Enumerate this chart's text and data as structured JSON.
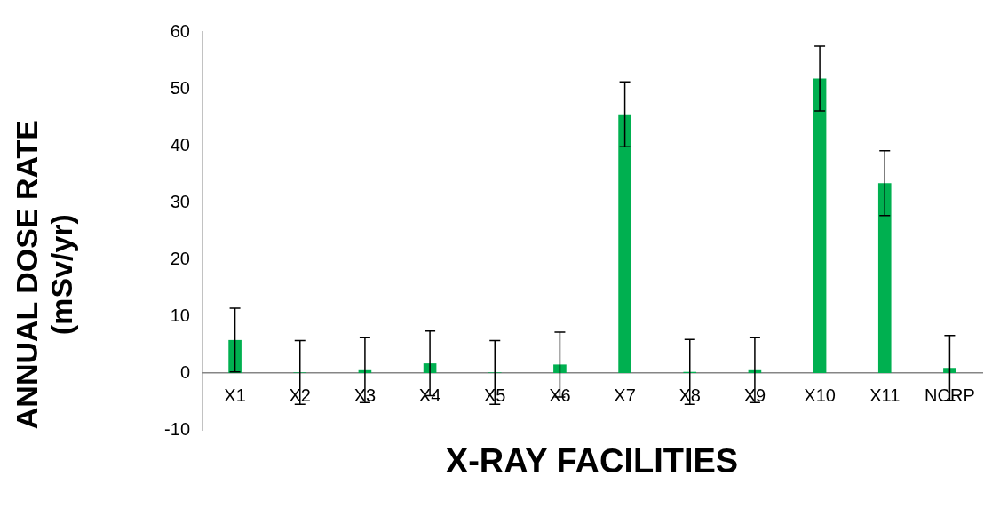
{
  "chart_data": {
    "type": "bar",
    "xlabel": "X-RAY FACILITIES",
    "ylabel": "ANNUAL DOSE RATE (mSv/yr)",
    "categories": [
      "X1",
      "X2",
      "X3",
      "X4",
      "X5",
      "X6",
      "X7",
      "X8",
      "X9",
      "X10",
      "X11",
      "NCRP"
    ],
    "values": [
      5.8,
      0.1,
      0.5,
      1.7,
      0.1,
      1.5,
      45.5,
      0.2,
      0.5,
      51.8,
      33.4,
      0.9
    ],
    "errors": [
      5.6,
      5.6,
      5.7,
      5.7,
      5.6,
      5.7,
      5.7,
      5.7,
      5.7,
      5.7,
      5.7,
      5.7
    ],
    "color": "#00b050",
    "ylim": [
      -10,
      60
    ],
    "yticks": [
      -10,
      0,
      10,
      20,
      30,
      40,
      50,
      60
    ],
    "grid": false,
    "legend": false
  }
}
